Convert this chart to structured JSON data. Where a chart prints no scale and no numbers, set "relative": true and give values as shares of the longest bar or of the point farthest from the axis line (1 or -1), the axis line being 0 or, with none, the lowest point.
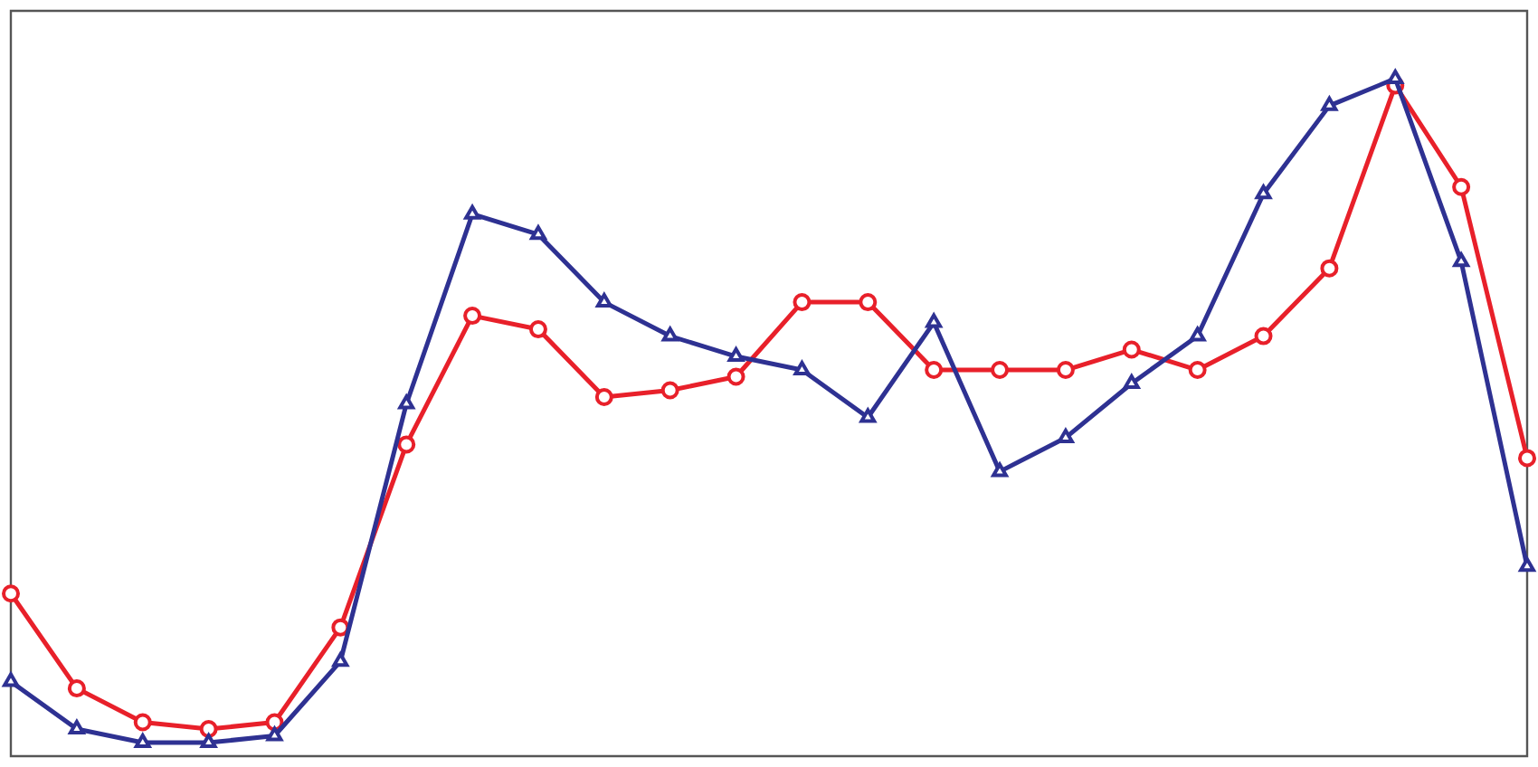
{
  "chart_data": {
    "type": "line",
    "relative": true,
    "legend": false,
    "line_style": "solid",
    "categories": [
      null,
      null,
      null,
      null,
      null,
      null,
      null,
      null,
      null,
      null,
      null,
      null,
      null,
      null,
      null,
      null,
      null,
      null,
      null,
      null,
      null,
      null,
      null,
      null
    ],
    "series": [
      {
        "color": "#e8202a",
        "marker": "circle",
        "values": [
          0.24,
          0.1,
          0.05,
          0.04,
          0.05,
          0.19,
          0.46,
          0.65,
          0.63,
          0.53,
          0.54,
          0.56,
          0.67,
          0.67,
          0.57,
          0.57,
          0.57,
          0.6,
          0.57,
          0.62,
          0.72,
          0.99,
          0.84,
          0.44
        ]
      },
      {
        "color": "#2e3192",
        "marker": "triangle",
        "values": [
          0.11,
          0.04,
          0.02,
          0.02,
          0.03,
          0.14,
          0.52,
          0.8,
          0.77,
          0.67,
          0.62,
          0.59,
          0.57,
          0.5,
          0.64,
          0.42,
          0.47,
          0.55,
          0.62,
          0.83,
          0.96,
          1.0,
          0.73,
          0.28
        ]
      }
    ]
  }
}
